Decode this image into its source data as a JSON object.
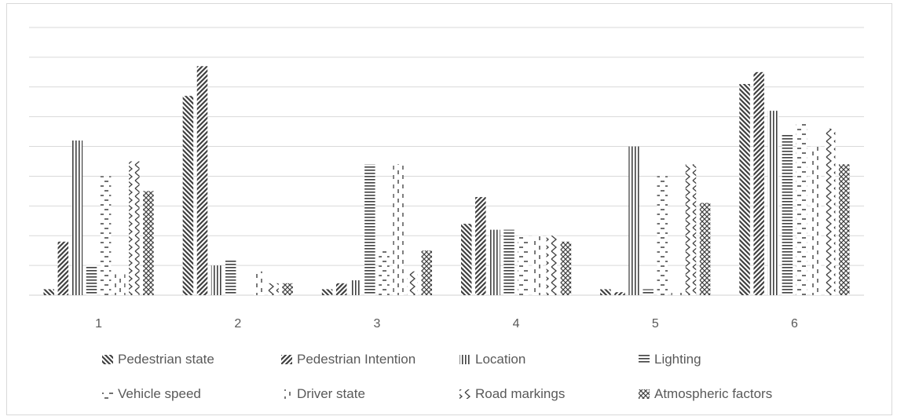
{
  "chart_data": {
    "type": "bar",
    "categories": [
      "1",
      "2",
      "3",
      "4",
      "5",
      "6"
    ],
    "ylim": [
      0,
      9
    ],
    "grid": true,
    "legend_position": "bottom",
    "series": [
      {
        "name": "Pedestrian state",
        "values": [
          0.2,
          6.7,
          0.2,
          2.4,
          0.2,
          7.1
        ],
        "pattern": "diag-back"
      },
      {
        "name": "Pedestrian Intention",
        "values": [
          1.8,
          7.7,
          0.4,
          3.3,
          0.1,
          7.5
        ],
        "pattern": "diag-fwd"
      },
      {
        "name": "Location",
        "values": [
          5.2,
          1.0,
          0.5,
          2.2,
          5.0,
          6.2
        ],
        "pattern": "vertical"
      },
      {
        "name": "Lighting",
        "values": [
          1.0,
          1.2,
          4.4,
          2.2,
          0.2,
          5.4
        ],
        "pattern": "horizontal"
      },
      {
        "name": "Vehicle speed",
        "values": [
          4.0,
          0.0,
          1.5,
          2.0,
          4.0,
          5.8
        ],
        "pattern": "dash-h"
      },
      {
        "name": "Driver state",
        "values": [
          0.7,
          0.8,
          4.4,
          2.0,
          0.1,
          5.0
        ],
        "pattern": "dash-v"
      },
      {
        "name": "Road markings",
        "values": [
          4.5,
          0.4,
          0.8,
          2.0,
          4.4,
          5.6
        ],
        "pattern": "zigzag"
      },
      {
        "name": "Atmospheric factors",
        "values": [
          3.5,
          0.4,
          1.5,
          1.8,
          3.1,
          4.4
        ],
        "pattern": "checker"
      }
    ]
  }
}
